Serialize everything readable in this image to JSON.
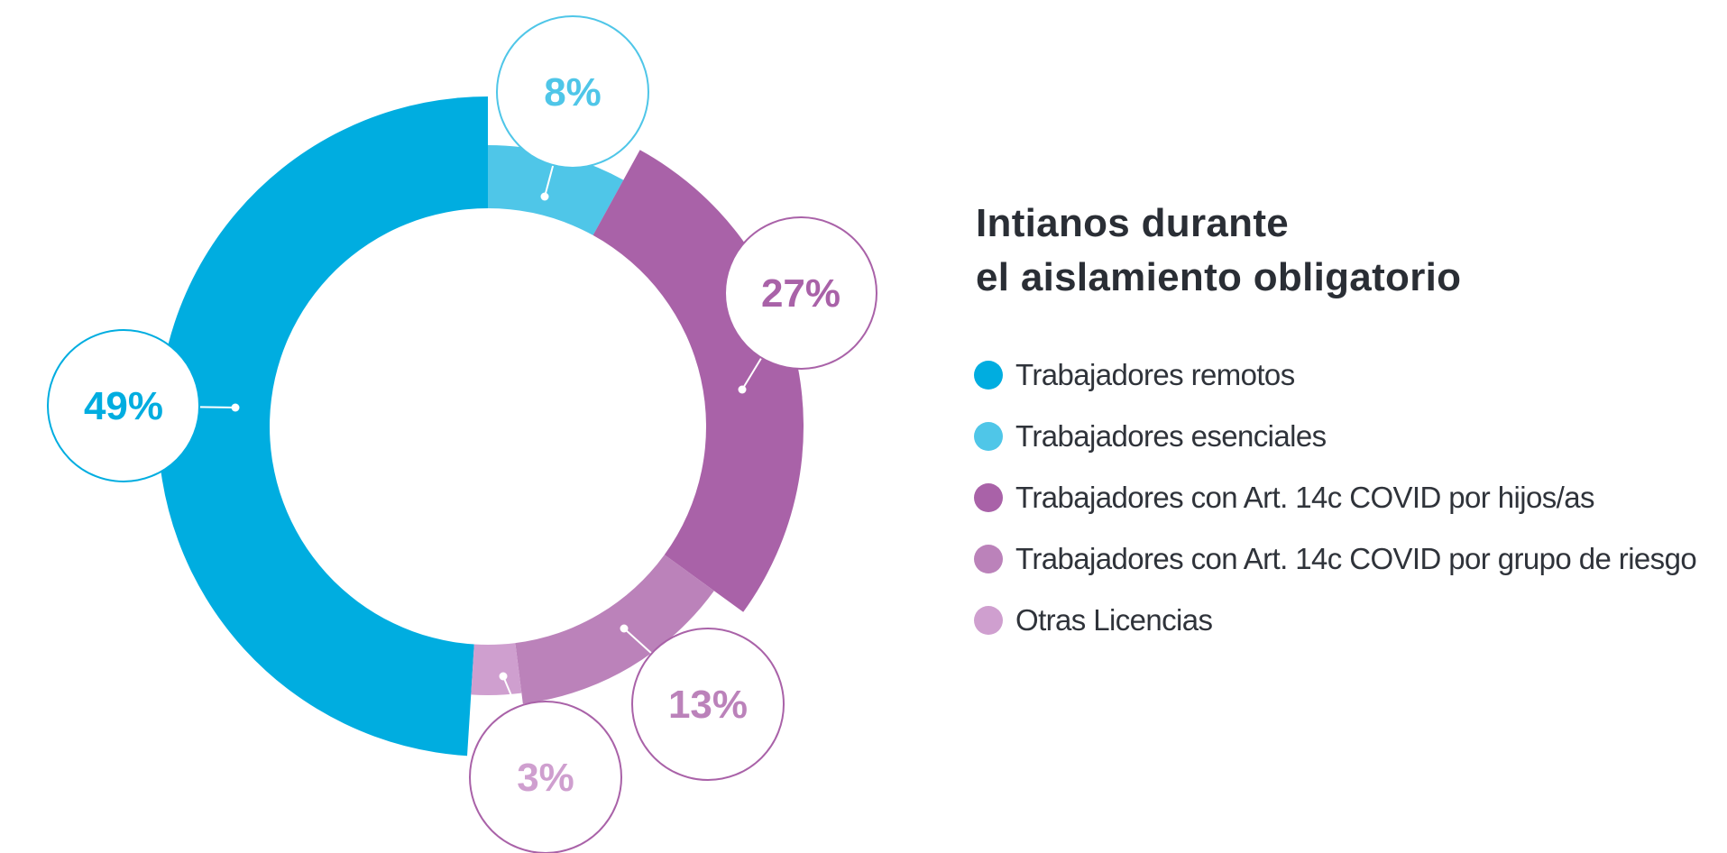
{
  "chart_data": {
    "type": "pie",
    "title_lines": [
      "Intianos durante",
      "el aislamiento obligatorio"
    ],
    "series": [
      {
        "name": "Trabajadores remotos",
        "value": 49,
        "label": "49%",
        "color": "#00ade0",
        "label_color": "#00ade0",
        "ring_color": "#00ade0"
      },
      {
        "name": "Trabajadores esenciales",
        "value": 8,
        "label": "8%",
        "color": "#4fc6e8",
        "label_color": "#4fc6e8",
        "ring_color": "#4fc6e8"
      },
      {
        "name": "Trabajadores con Art. 14c COVID por hijos/as",
        "value": 27,
        "label": "27%",
        "color": "#a962a8",
        "label_color": "#a962a8",
        "ring_color": "#a962a8"
      },
      {
        "name": "Trabajadores con Art. 14c COVID por grupo de riesgo",
        "value": 13,
        "label": "13%",
        "color": "#bb82ba",
        "label_color": "#bb82ba",
        "ring_color": "#a962a8"
      },
      {
        "name": "Otras Licencias",
        "value": 3,
        "label": "3%",
        "color": "#cf9fcf",
        "label_color": "#cf9fcf",
        "ring_color": "#a962a8"
      }
    ],
    "legend_position": "right"
  }
}
